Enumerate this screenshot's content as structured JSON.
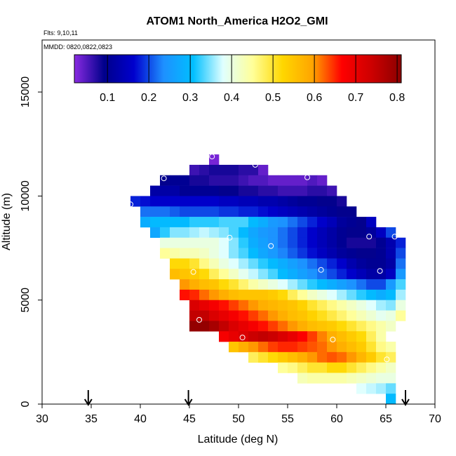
{
  "chart_data": {
    "type": "heatmap",
    "title": "ATOM1 North_America H2O2_GMI",
    "flights_label": "Flts: 9,10,11",
    "dates_label": "MMDD: 0820,0822,0823",
    "xlabel": "Latitude (deg N)",
    "ylabel": "Altitude (m)",
    "xlim": [
      30,
      70
    ],
    "ylim": [
      0,
      17500
    ],
    "xticks": [
      "30",
      "35",
      "40",
      "45",
      "50",
      "55",
      "60",
      "65",
      "70"
    ],
    "yticks": [
      "0",
      "5000",
      "10000",
      "15000"
    ],
    "colorbar": {
      "range": [
        0.02,
        0.81
      ],
      "ticks": [
        "0.1",
        "0.2",
        "0.3",
        "0.4",
        "0.5",
        "0.6",
        "0.7",
        "0.8"
      ],
      "stops": [
        "#8a2be2",
        "#00008b",
        "#0000cd",
        "#1e90ff",
        "#00bfff",
        "#e0ffff",
        "#ffff99",
        "#ffd700",
        "#ffa500",
        "#ff0000",
        "#cd0000",
        "#8b0000"
      ]
    },
    "cell_lat_size": 1,
    "cell_alt_size": 500,
    "rows": [
      {
        "alt": 11750,
        "lat_start": 47,
        "values": [
          0.03
        ]
      },
      {
        "alt": 11250,
        "lat_start": 45,
        "values": [
          0.06,
          0.07,
          0.08,
          0.08,
          0.08,
          0.07,
          0.07,
          0.04
        ]
      },
      {
        "alt": 10750,
        "lat_start": 42,
        "values": [
          0.09,
          0.1,
          0.1,
          0.08,
          0.08,
          0.07,
          0.07,
          0.07,
          0.06,
          0.05,
          0.05,
          0.04,
          0.04,
          0.04,
          0.04,
          0.05,
          0.04
        ]
      },
      {
        "alt": 10250,
        "lat_start": 41,
        "values": [
          0.12,
          0.12,
          0.12,
          0.1,
          0.1,
          0.1,
          0.1,
          0.09,
          0.09,
          0.08,
          0.08,
          0.07,
          0.07,
          0.06,
          0.06,
          0.06,
          0.07,
          0.07,
          0.06
        ]
      },
      {
        "alt": 9750,
        "lat_start": 39,
        "values": [
          0.18,
          0.17,
          0.16,
          0.16,
          0.16,
          0.16,
          0.16,
          0.16,
          0.16,
          0.15,
          0.15,
          0.14,
          0.14,
          0.13,
          0.13,
          0.12,
          0.11,
          0.1,
          0.1,
          0.09,
          0.09,
          0.08
        ]
      },
      {
        "alt": 9250,
        "lat_start": 40,
        "values": [
          0.22,
          0.22,
          0.22,
          0.21,
          0.2,
          0.2,
          0.2,
          0.2,
          0.19,
          0.19,
          0.18,
          0.18,
          0.17,
          0.16,
          0.15,
          0.14,
          0.13,
          0.12,
          0.11,
          0.1,
          0.09,
          0.09
        ]
      },
      {
        "alt": 8750,
        "lat_start": 40,
        "values": [
          0.28,
          0.3,
          0.3,
          0.3,
          0.3,
          0.32,
          0.32,
          0.32,
          0.33,
          0.33,
          0.33,
          0.3,
          0.28,
          0.25,
          0.24,
          0.22,
          0.2,
          0.18,
          0.16,
          0.14,
          0.11,
          0.1,
          0.09,
          0.15
        ]
      },
      {
        "alt": 8250,
        "lat_start": 41,
        "values": [
          0.27,
          0.32,
          0.35,
          0.35,
          0.36,
          0.37,
          0.36,
          0.35,
          0.33,
          0.3,
          0.27,
          0.25,
          0.24,
          0.22,
          0.2,
          0.18,
          0.16,
          0.14,
          0.12,
          0.1,
          0.09,
          0.09,
          0.11,
          0.15,
          0.2
        ]
      },
      {
        "alt": 7750,
        "lat_start": 42,
        "values": [
          0.4,
          0.4,
          0.4,
          0.4,
          0.4,
          0.4,
          0.38,
          0.35,
          0.32,
          0.28,
          0.26,
          0.24,
          0.22,
          0.2,
          0.18,
          0.16,
          0.14,
          0.12,
          0.1,
          0.08,
          0.08,
          0.08,
          0.1,
          0.13,
          0.18
        ]
      },
      {
        "alt": 7250,
        "lat_start": 42,
        "values": [
          0.45,
          0.44,
          0.43,
          0.43,
          0.42,
          0.4,
          0.38,
          0.35,
          0.33,
          0.3,
          0.27,
          0.25,
          0.23,
          0.21,
          0.19,
          0.17,
          0.15,
          0.13,
          0.11,
          0.1,
          0.09,
          0.09,
          0.1,
          0.13,
          0.2
        ]
      },
      {
        "alt": 6750,
        "lat_start": 43,
        "values": [
          0.52,
          0.52,
          0.5,
          0.46,
          0.43,
          0.4,
          0.38,
          0.36,
          0.34,
          0.32,
          0.3,
          0.28,
          0.26,
          0.24,
          0.22,
          0.2,
          0.18,
          0.16,
          0.13,
          0.11,
          0.1,
          0.1,
          0.12,
          0.22
        ]
      },
      {
        "alt": 6250,
        "lat_start": 43,
        "values": [
          0.56,
          0.55,
          0.54,
          0.52,
          0.48,
          0.45,
          0.42,
          0.39,
          0.37,
          0.35,
          0.33,
          0.3,
          0.28,
          0.26,
          0.24,
          0.22,
          0.2,
          0.18,
          0.16,
          0.14,
          0.12,
          0.12,
          0.15,
          0.25
        ]
      },
      {
        "alt": 5750,
        "lat_start": 44,
        "values": [
          0.6,
          0.58,
          0.56,
          0.55,
          0.52,
          0.5,
          0.47,
          0.44,
          0.42,
          0.4,
          0.38,
          0.36,
          0.34,
          0.32,
          0.3,
          0.28,
          0.26,
          0.24,
          0.22,
          0.2,
          0.2,
          0.25,
          0.33
        ]
      },
      {
        "alt": 5250,
        "lat_start": 44,
        "values": [
          0.66,
          0.65,
          0.62,
          0.6,
          0.58,
          0.56,
          0.55,
          0.55,
          0.55,
          0.54,
          0.52,
          0.48,
          0.45,
          0.42,
          0.4,
          0.38,
          0.36,
          0.34,
          0.32,
          0.3,
          0.28,
          0.3,
          0.36
        ]
      },
      {
        "alt": 4750,
        "lat_start": 45,
        "values": [
          0.72,
          0.7,
          0.68,
          0.66,
          0.64,
          0.62,
          0.6,
          0.58,
          0.57,
          0.56,
          0.55,
          0.53,
          0.5,
          0.48,
          0.46,
          0.44,
          0.42,
          0.4,
          0.38,
          0.36,
          0.35,
          0.4
        ]
      },
      {
        "alt": 4250,
        "lat_start": 45,
        "values": [
          0.75,
          0.75,
          0.72,
          0.7,
          0.68,
          0.66,
          0.64,
          0.62,
          0.6,
          0.58,
          0.56,
          0.55,
          0.53,
          0.51,
          0.49,
          0.47,
          0.45,
          0.43,
          0.41,
          0.39,
          0.4,
          0.45
        ]
      },
      {
        "alt": 3750,
        "lat_start": 45,
        "values": [
          0.8,
          0.8,
          0.78,
          0.75,
          0.72,
          0.7,
          0.68,
          0.66,
          0.64,
          0.62,
          0.6,
          0.58,
          0.56,
          0.55,
          0.54,
          0.52,
          0.5,
          0.48,
          0.46,
          0.44,
          0.42
        ]
      },
      {
        "alt": 3250,
        "lat_start": 48,
        "values": [
          0.68,
          0.7,
          0.72,
          0.74,
          0.75,
          0.74,
          0.72,
          0.7,
          0.67,
          0.64,
          0.61,
          0.58,
          0.56,
          0.54,
          0.52,
          0.48,
          0.44
        ]
      },
      {
        "alt": 2750,
        "lat_start": 49,
        "values": [
          0.55,
          0.58,
          0.6,
          0.62,
          0.64,
          0.65,
          0.65,
          0.64,
          0.63,
          0.62,
          0.6,
          0.58,
          0.56,
          0.54,
          0.5,
          0.46,
          0.44
        ]
      },
      {
        "alt": 2250,
        "lat_start": 51,
        "values": [
          0.48,
          0.5,
          0.52,
          0.54,
          0.56,
          0.58,
          0.6,
          0.62,
          0.63,
          0.62,
          0.6,
          0.57,
          0.54,
          0.5,
          0.48
        ]
      },
      {
        "alt": 1750,
        "lat_start": 54,
        "values": [
          0.45,
          0.46,
          0.48,
          0.5,
          0.5,
          0.52,
          0.52,
          0.5,
          0.48,
          0.46,
          0.44,
          0.42
        ]
      },
      {
        "alt": 1250,
        "lat_start": 56,
        "values": [
          0.43,
          0.44,
          0.44,
          0.44,
          0.44,
          0.43,
          0.42,
          0.41,
          0.4,
          0.4
        ]
      },
      {
        "alt": 750,
        "lat_start": 62,
        "values": [
          0.38,
          0.37,
          0.36,
          0.34
        ]
      },
      {
        "alt": 250,
        "lat_start": 65,
        "values": [
          0.3
        ]
      }
    ],
    "sample_points": [
      {
        "lat": 47.3,
        "alt": 11900
      },
      {
        "lat": 51.7,
        "alt": 11500
      },
      {
        "lat": 42.4,
        "alt": 10850
      },
      {
        "lat": 57.0,
        "alt": 10900
      },
      {
        "lat": 39.0,
        "alt": 9600
      },
      {
        "lat": 49.1,
        "alt": 8000
      },
      {
        "lat": 53.3,
        "alt": 7600
      },
      {
        "lat": 63.3,
        "alt": 8050
      },
      {
        "lat": 65.9,
        "alt": 8050
      },
      {
        "lat": 45.4,
        "alt": 6350
      },
      {
        "lat": 58.4,
        "alt": 6450
      },
      {
        "lat": 64.4,
        "alt": 6400
      },
      {
        "lat": 46.0,
        "alt": 4050
      },
      {
        "lat": 50.4,
        "alt": 3200
      },
      {
        "lat": 59.6,
        "alt": 3100
      },
      {
        "lat": 65.1,
        "alt": 2150
      }
    ],
    "flight_arrows_lat": [
      34.7,
      44.9,
      67.0
    ]
  }
}
